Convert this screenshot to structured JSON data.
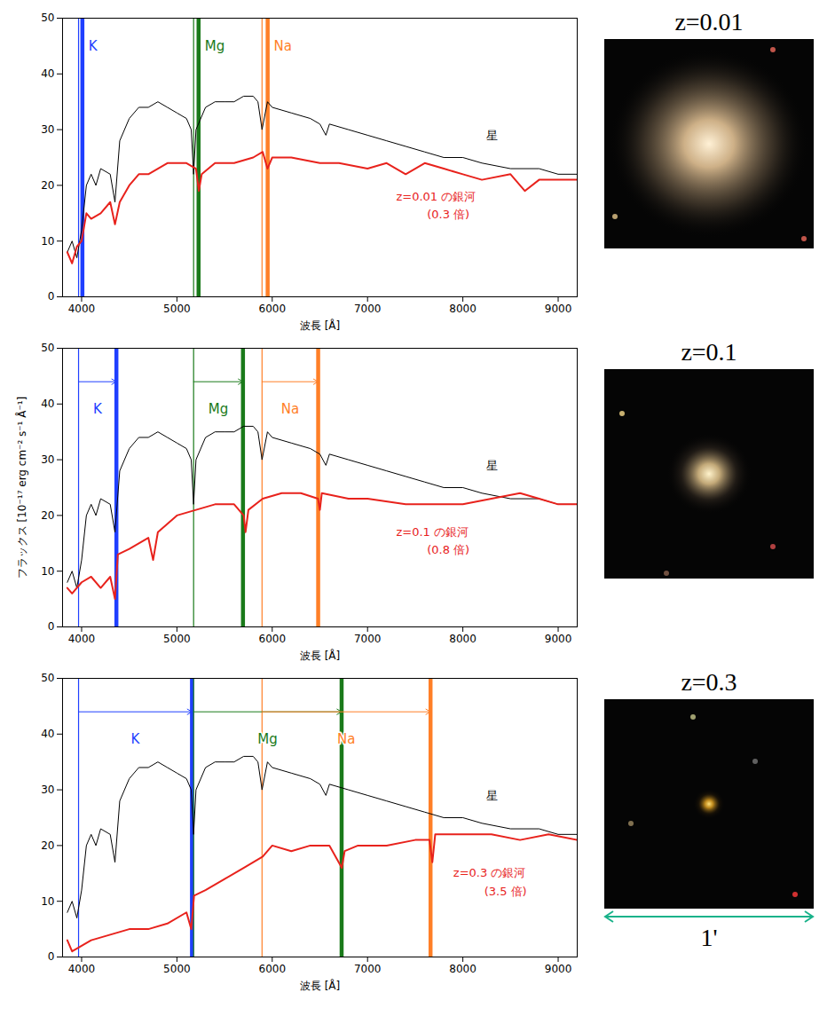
{
  "chart_data": [
    {
      "type": "line",
      "title": "z=0.01",
      "x_label": "波長 [Å]",
      "xlim": [
        3800,
        9200
      ],
      "xticks": [
        4000,
        5000,
        6000,
        7000,
        8000,
        9000
      ],
      "ylim": [
        0,
        50
      ],
      "yticks": [
        0,
        10,
        20,
        30,
        40,
        50
      ],
      "series": [
        {
          "name": "星",
          "color": "#000000",
          "label_x": 8250,
          "label_y": 29,
          "x": [
            3850,
            3900,
            3950,
            4000,
            4050,
            4100,
            4150,
            4200,
            4300,
            4350,
            4400,
            4500,
            4600,
            4700,
            4800,
            4900,
            5000,
            5100,
            5150,
            5175,
            5200,
            5300,
            5400,
            5500,
            5600,
            5700,
            5800,
            5850,
            5893,
            5950,
            6000,
            6200,
            6400,
            6500,
            6563,
            6600,
            6800,
            7000,
            7200,
            7400,
            7600,
            7800,
            8000,
            8200,
            8500,
            8800,
            9000,
            9200
          ],
          "values": [
            8,
            10,
            7,
            12,
            20,
            22,
            20,
            23,
            22,
            17,
            28,
            32,
            34,
            34,
            35,
            34,
            33,
            32,
            30,
            22,
            30,
            34,
            35,
            35,
            35,
            36,
            36,
            35,
            30,
            35,
            34,
            33,
            32,
            31,
            29,
            31,
            30,
            29,
            28,
            27,
            26,
            25,
            25,
            24,
            23,
            23,
            22,
            22
          ]
        },
        {
          "name": "z=0.01 の銀河",
          "note": "(0.3 倍)",
          "color": "#e8221c",
          "label_x": 7300,
          "label_y": 18,
          "x": [
            3850,
            3900,
            3950,
            4000,
            4050,
            4100,
            4200,
            4300,
            4350,
            4400,
            4500,
            4600,
            4700,
            4800,
            4900,
            5000,
            5100,
            5200,
            5230,
            5260,
            5400,
            5600,
            5800,
            5900,
            5950,
            6000,
            6200,
            6500,
            6700,
            7000,
            7200,
            7400,
            7600,
            7800,
            8000,
            8200,
            8500,
            8650,
            8800,
            9000,
            9200
          ],
          "values": [
            8,
            6,
            9,
            10,
            15,
            14,
            15,
            17,
            13,
            17,
            20,
            22,
            22,
            23,
            24,
            24,
            24,
            23,
            19,
            22,
            24,
            24,
            25,
            26,
            23,
            25,
            25,
            24,
            24,
            23,
            24,
            22,
            24,
            23,
            22,
            21,
            22,
            19,
            21,
            21,
            21
          ]
        }
      ],
      "lines": [
        {
          "name": "K",
          "color": "#1f3fff",
          "rest": 3968,
          "observed": 4008
        },
        {
          "name": "Mg",
          "color": "#1a7a1a",
          "rest": 5175,
          "observed": 5227
        },
        {
          "name": "Na",
          "color": "#ff7f27",
          "rest": 5893,
          "observed": 5952
        }
      ]
    },
    {
      "type": "line",
      "title": "z=0.1",
      "x_label": "波長 [Å]",
      "y_label": "フラックス [10⁻¹⁷ erg cm⁻² s⁻¹ Å⁻¹]",
      "xlim": [
        3800,
        9200
      ],
      "xticks": [
        4000,
        5000,
        6000,
        7000,
        8000,
        9000
      ],
      "ylim": [
        0,
        50
      ],
      "yticks": [
        0,
        10,
        20,
        30,
        40,
        50
      ],
      "series": [
        {
          "name": "星",
          "color": "#000000",
          "label_x": 8250,
          "label_y": 29,
          "x": [
            3850,
            3900,
            3950,
            4000,
            4050,
            4100,
            4150,
            4200,
            4300,
            4350,
            4400,
            4500,
            4600,
            4700,
            4800,
            4900,
            5000,
            5100,
            5150,
            5175,
            5200,
            5300,
            5400,
            5500,
            5600,
            5700,
            5800,
            5850,
            5893,
            5950,
            6000,
            6200,
            6400,
            6500,
            6563,
            6600,
            6800,
            7000,
            7200,
            7400,
            7600,
            7800,
            8000,
            8200,
            8500,
            8800,
            9000,
            9200
          ],
          "values": [
            8,
            10,
            7,
            12,
            20,
            22,
            20,
            23,
            22,
            17,
            28,
            32,
            34,
            34,
            35,
            34,
            33,
            32,
            30,
            22,
            30,
            34,
            35,
            35,
            35,
            36,
            36,
            35,
            30,
            35,
            34,
            33,
            32,
            31,
            29,
            31,
            30,
            29,
            28,
            27,
            26,
            25,
            25,
            24,
            23,
            23,
            22,
            22
          ]
        },
        {
          "name": "z=0.1 の銀河",
          "note": "(0.8 倍)",
          "color": "#e8221c",
          "label_x": 7300,
          "label_y": 17,
          "x": [
            3850,
            3900,
            4000,
            4100,
            4200,
            4300,
            4350,
            4380,
            4500,
            4700,
            4750,
            4800,
            5000,
            5200,
            5400,
            5600,
            5700,
            5720,
            5750,
            5900,
            6100,
            6300,
            6480,
            6500,
            6520,
            6800,
            7000,
            7400,
            7700,
            8000,
            8300,
            8600,
            8800,
            9000,
            9200
          ],
          "values": [
            7,
            6,
            8,
            9,
            7,
            9,
            5,
            13,
            14,
            16,
            12,
            17,
            20,
            21,
            22,
            22,
            20,
            17,
            21,
            23,
            24,
            24,
            23,
            21,
            24,
            23,
            23,
            22,
            22,
            22,
            23,
            24,
            23,
            22,
            22
          ]
        }
      ],
      "lines": [
        {
          "name": "K",
          "color": "#1f3fff",
          "rest": 3968,
          "observed": 4365
        },
        {
          "name": "Mg",
          "color": "#1a7a1a",
          "rest": 5175,
          "observed": 5693
        },
        {
          "name": "Na",
          "color": "#ff7f27",
          "rest": 5893,
          "observed": 6482
        }
      ]
    },
    {
      "type": "line",
      "title": "z=0.3",
      "x_label": "波長 [Å]",
      "image_scale": "1'",
      "xlim": [
        3800,
        9200
      ],
      "xticks": [
        4000,
        5000,
        6000,
        7000,
        8000,
        9000
      ],
      "ylim": [
        0,
        50
      ],
      "yticks": [
        0,
        10,
        20,
        30,
        40,
        50
      ],
      "series": [
        {
          "name": "星",
          "color": "#000000",
          "label_x": 8250,
          "label_y": 29,
          "x": [
            3850,
            3900,
            3950,
            4000,
            4050,
            4100,
            4150,
            4200,
            4300,
            4350,
            4400,
            4500,
            4600,
            4700,
            4800,
            4900,
            5000,
            5100,
            5150,
            5175,
            5200,
            5300,
            5400,
            5500,
            5600,
            5700,
            5800,
            5850,
            5893,
            5950,
            6000,
            6200,
            6400,
            6500,
            6563,
            6600,
            6800,
            7000,
            7200,
            7400,
            7600,
            7800,
            8000,
            8200,
            8500,
            8800,
            9000,
            9200
          ],
          "values": [
            8,
            10,
            7,
            12,
            20,
            22,
            20,
            23,
            22,
            17,
            28,
            32,
            34,
            34,
            35,
            34,
            33,
            32,
            30,
            22,
            30,
            34,
            35,
            35,
            35,
            36,
            36,
            35,
            30,
            35,
            34,
            33,
            32,
            31,
            29,
            31,
            30,
            29,
            28,
            27,
            26,
            25,
            25,
            24,
            23,
            23,
            22,
            22
          ]
        },
        {
          "name": "z=0.3 の銀河",
          "note": "(3.5 倍)",
          "color": "#e8221c",
          "label_x": 7900,
          "label_y": 15,
          "x": [
            3850,
            3900,
            4000,
            4100,
            4300,
            4500,
            4700,
            4900,
            5100,
            5150,
            5180,
            5300,
            5500,
            5700,
            5900,
            6000,
            6200,
            6400,
            6600,
            6730,
            6760,
            6900,
            7200,
            7500,
            7650,
            7680,
            7710,
            8000,
            8300,
            8600,
            8900,
            9200
          ],
          "values": [
            3,
            1,
            2,
            3,
            4,
            5,
            5,
            6,
            8,
            5,
            11,
            12,
            14,
            16,
            18,
            20,
            19,
            20,
            20,
            16,
            19,
            20,
            20,
            21,
            21,
            17,
            22,
            22,
            22,
            21,
            22,
            21
          ]
        }
      ],
      "lines": [
        {
          "name": "K",
          "color": "#1f3fff",
          "rest": 3968,
          "observed": 5158
        },
        {
          "name": "Mg",
          "color": "#1a7a1a",
          "rest": 5175,
          "observed": 6728
        },
        {
          "name": "Na",
          "color": "#ff7f27",
          "rest": 5893,
          "observed": 7661
        }
      ]
    }
  ]
}
